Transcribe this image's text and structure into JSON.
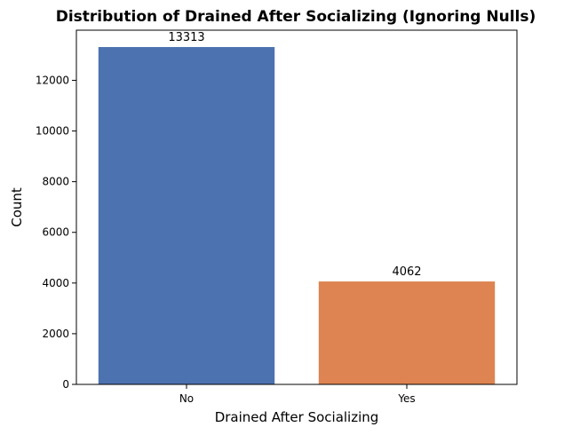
{
  "chart_data": {
    "type": "bar",
    "title": "Distribution of Drained After Socializing (Ignoring Nulls)",
    "xlabel": "Drained After Socializing",
    "ylabel": "Count",
    "categories": [
      "No",
      "Yes"
    ],
    "values": [
      13313,
      4062
    ],
    "data_labels": [
      "13313",
      "4062"
    ],
    "colors": [
      "#4c72b0",
      "#dd8452"
    ],
    "ylim": [
      0,
      13978
    ],
    "yticks": [
      0,
      2000,
      4000,
      6000,
      8000,
      10000,
      12000
    ],
    "ytick_labels": [
      "0",
      "2000",
      "4000",
      "6000",
      "8000",
      "10000",
      "12000"
    ],
    "grid": false,
    "legend": "none"
  }
}
